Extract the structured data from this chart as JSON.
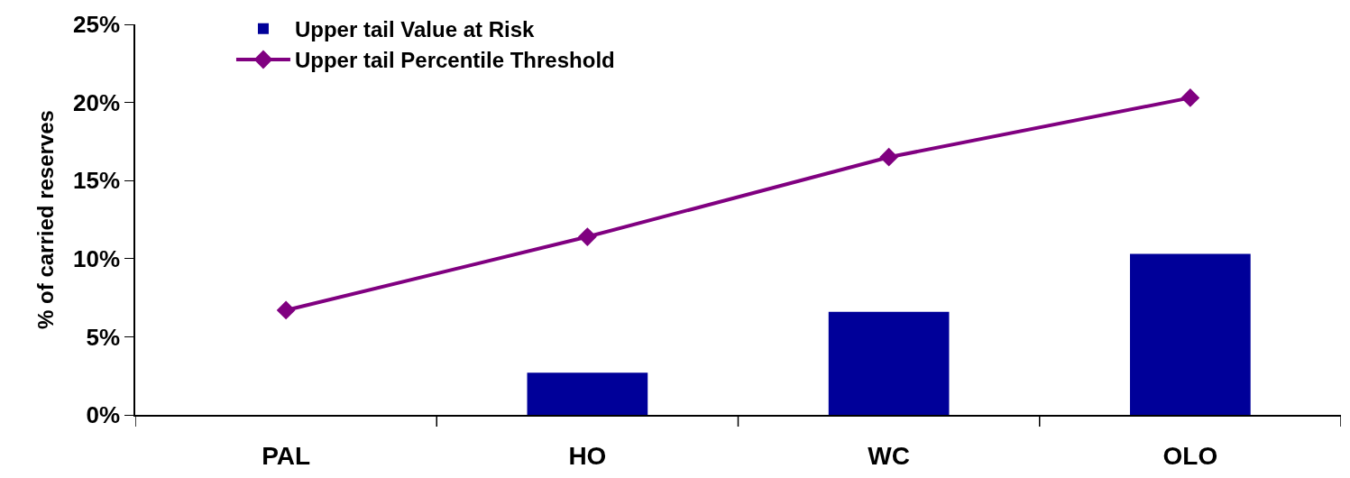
{
  "chart_data": {
    "type": "bar",
    "ylabel": "% of carried reserves",
    "categories": [
      "PAL",
      "HO",
      "WC",
      "OLO"
    ],
    "series": [
      {
        "name": "Upper tail Value at Risk",
        "color": "#000099",
        "values": [
          null,
          2.7,
          6.6,
          10.3
        ]
      },
      {
        "name": "Upper tail Percentile Threshold",
        "type": "line",
        "color": "#800080",
        "marker": "diamond",
        "values": [
          6.7,
          11.4,
          16.5,
          20.3
        ]
      }
    ],
    "ylim": [
      0,
      25
    ],
    "yticks": [
      {
        "value": 0,
        "label": "0%"
      },
      {
        "value": 5,
        "label": "5%"
      },
      {
        "value": 10,
        "label": "10%"
      },
      {
        "value": 15,
        "label": "15%"
      },
      {
        "value": 20,
        "label": "20%"
      },
      {
        "value": 25,
        "label": "25%"
      }
    ],
    "grid": false,
    "legend": "top left"
  }
}
